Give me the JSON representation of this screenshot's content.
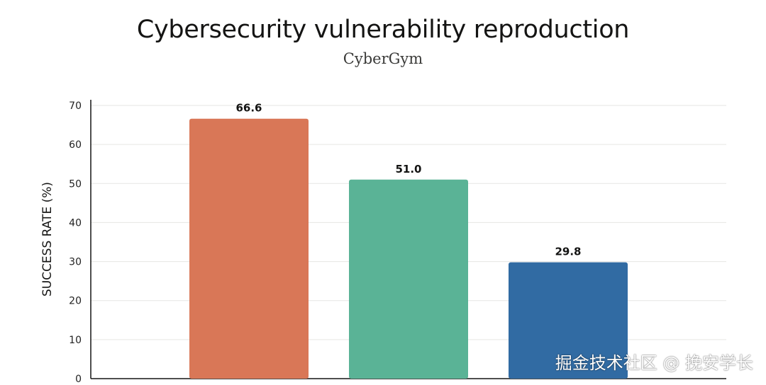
{
  "chart_data": {
    "type": "bar",
    "title": "Cybersecurity vulnerability reproduction",
    "subtitle": "CyberGym",
    "xlabel": "",
    "ylabel": "SUCCESS RATE (%)",
    "ylim": [
      0,
      70
    ],
    "yticks": [
      0,
      10,
      20,
      30,
      40,
      50,
      60,
      70
    ],
    "grid": true,
    "values": [
      66.6,
      51.0,
      29.8
    ],
    "value_labels": [
      "66.6",
      "51.0",
      "29.8"
    ],
    "colors": [
      "#d97757",
      "#5ab396",
      "#316ba3"
    ]
  },
  "watermark": "掘金技术社区 @ 挽安学长"
}
